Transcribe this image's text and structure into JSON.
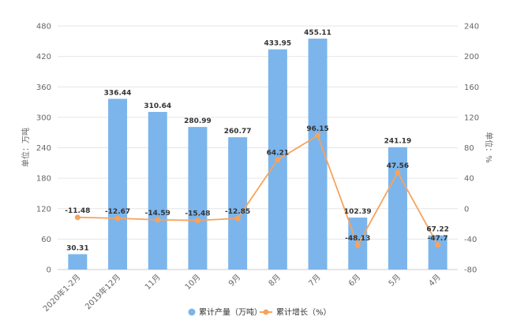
{
  "chart_data": {
    "type": "bar",
    "categories": [
      "2020年1-2月",
      "2019年12月",
      "11月",
      "10月",
      "9月",
      "8月",
      "7月",
      "6月",
      "5月",
      "4月"
    ],
    "series": [
      {
        "name": "累计产量（万吨）",
        "type": "bar",
        "axis": "left",
        "color": "#7cb5ec",
        "values": [
          30.31,
          336.44,
          310.64,
          280.99,
          260.77,
          433.95,
          455.11,
          102.39,
          241.19,
          67.22
        ],
        "labels": [
          "30.31",
          "336.44",
          "310.64",
          "280.99",
          "260.77",
          "433.95",
          "455.11",
          "102.39",
          "241.19",
          "67.22"
        ]
      },
      {
        "name": "累计增长（%）",
        "type": "line",
        "axis": "right",
        "color": "#f7a35c",
        "values": [
          -11.48,
          -12.67,
          -14.59,
          -15.48,
          -12.85,
          64.21,
          96.15,
          -48.13,
          47.56,
          -47.7
        ],
        "labels": [
          "-11.48",
          "-12.67",
          "-14.59",
          "-15.48",
          "-12.85",
          "64.21",
          "96.15",
          "-48.13",
          "47.56",
          "-47.7"
        ]
      }
    ],
    "y_left": {
      "label": "单位：万吨",
      "ylim": [
        0,
        480
      ],
      "ticks": [
        0,
        60,
        120,
        180,
        240,
        300,
        360,
        420,
        480
      ]
    },
    "y_right": {
      "label": "单位：%",
      "ylim": [
        -80,
        240
      ],
      "ticks": [
        -80,
        -40,
        0,
        40,
        80,
        120,
        160,
        200,
        240
      ]
    },
    "grid": true,
    "legend_position": "bottom-center"
  }
}
